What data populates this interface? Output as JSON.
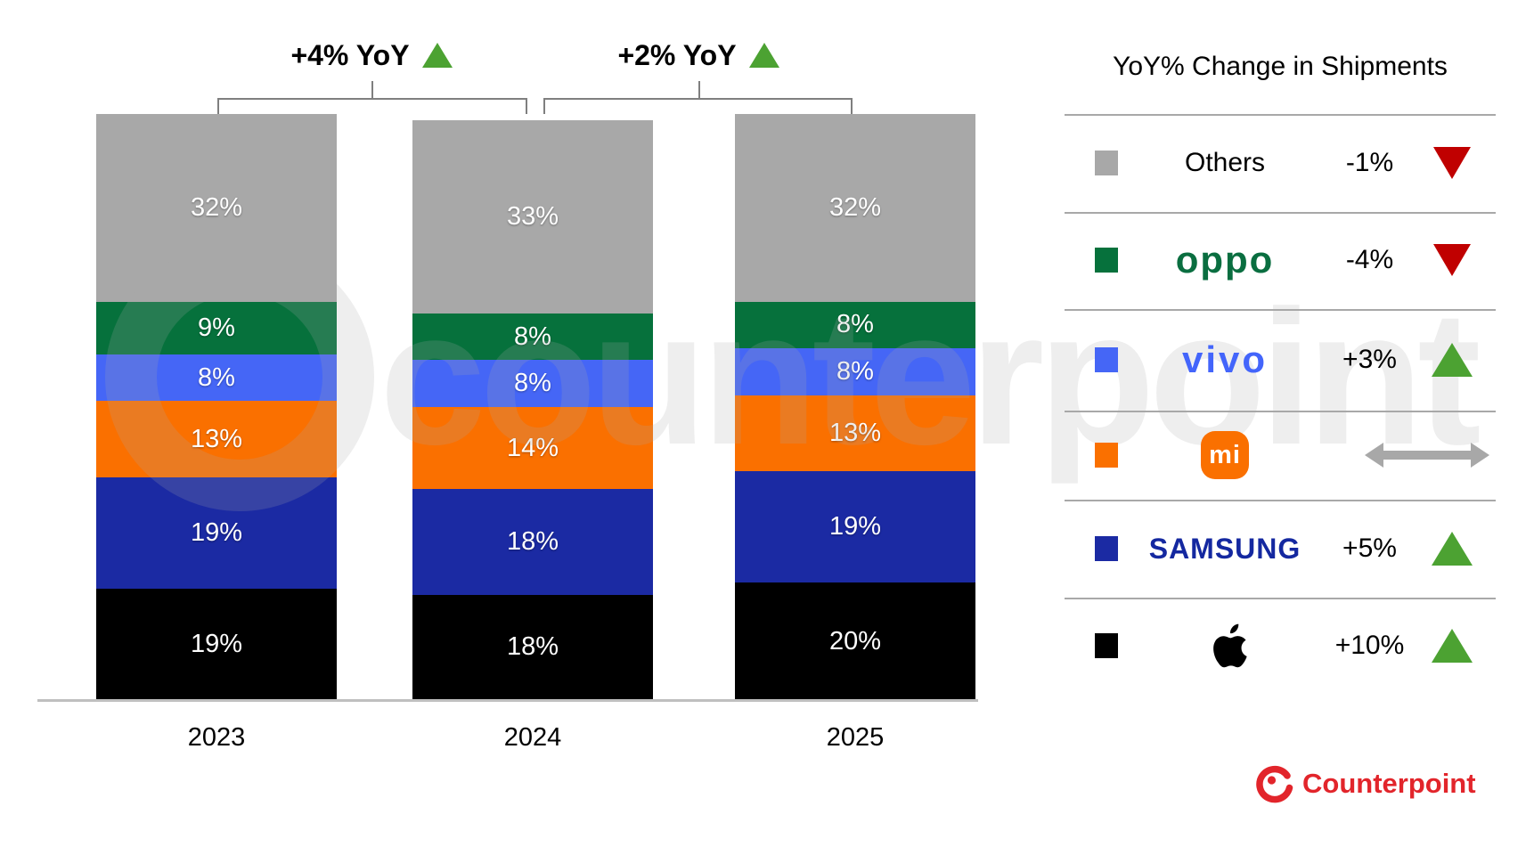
{
  "watermark": {
    "text": "counterpoint"
  },
  "chart_data": {
    "type": "bar",
    "stacked": true,
    "unit": "%",
    "stack_order": "top-to-bottom",
    "categories": [
      "2023",
      "2024",
      "2025"
    ],
    "series": [
      {
        "name": "Others",
        "color": "#A8A8A8",
        "values": [
          32,
          33,
          32
        ]
      },
      {
        "name": "OPPO",
        "color": "#06713C",
        "values": [
          9,
          8,
          8
        ]
      },
      {
        "name": "vivo",
        "color": "#4566F6",
        "values": [
          8,
          8,
          8
        ]
      },
      {
        "name": "Xiaomi",
        "color": "#FA7000",
        "values": [
          13,
          14,
          13
        ]
      },
      {
        "name": "Samsung",
        "color": "#1B2AA3",
        "values": [
          19,
          18,
          19
        ]
      },
      {
        "name": "Apple",
        "color": "#000000",
        "values": [
          19,
          18,
          20
        ]
      }
    ],
    "annotations": [
      {
        "label": "+4% YoY",
        "direction": "up",
        "from_year": "2023",
        "to_year": "2024"
      },
      {
        "label": "+2% YoY",
        "direction": "up",
        "from_year": "2024",
        "to_year": "2025"
      }
    ],
    "legend": {
      "title": "YoY% Change in Shipments",
      "rows": [
        {
          "brand": "Others",
          "logo_text": "Others",
          "logo_style": "plain",
          "swatch": "#A8A8A8",
          "change": "-1%",
          "direction": "down"
        },
        {
          "brand": "OPPO",
          "logo_text": "oppo",
          "logo_style": "oppo",
          "swatch": "#06713C",
          "change": "-4%",
          "direction": "down"
        },
        {
          "brand": "vivo",
          "logo_text": "vivo",
          "logo_style": "vivo",
          "swatch": "#4566F6",
          "change": "+3%",
          "direction": "up"
        },
        {
          "brand": "Xiaomi",
          "logo_text": "mi",
          "logo_style": "mi",
          "swatch": "#FA7000",
          "change": "",
          "direction": "flat"
        },
        {
          "brand": "Samsung",
          "logo_text": "SAMSUNG",
          "logo_style": "samsung",
          "swatch": "#1B2AA3",
          "change": "+5%",
          "direction": "up"
        },
        {
          "brand": "Apple",
          "logo_text": "",
          "logo_style": "apple",
          "swatch": "#000000",
          "change": "+10%",
          "direction": "up"
        }
      ],
      "arrow_colors": {
        "up": "#4CA232",
        "down": "#C00000",
        "flat": "#A8A8A8"
      }
    },
    "xlabel": "",
    "ylabel": "",
    "grid": false,
    "legend_position": "right"
  },
  "footer": {
    "brand": "Counterpoint",
    "color": "#E2252B"
  }
}
